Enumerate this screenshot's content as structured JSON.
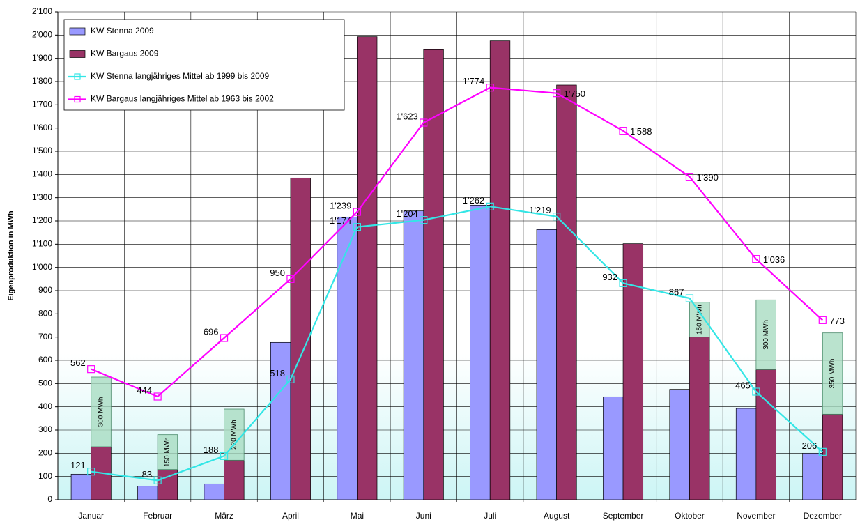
{
  "chart_data": {
    "type": "bar_line",
    "y_label": "Eigenproduktion in MWh",
    "categories": [
      "Januar",
      "Februar",
      "März",
      "April",
      "Mai",
      "Juni",
      "Juli",
      "August",
      "September",
      "Oktober",
      "November",
      "Dezember"
    ],
    "ylim": [
      0,
      2100
    ],
    "yticks": [
      0,
      100,
      200,
      300,
      400,
      500,
      600,
      700,
      800,
      900,
      {
        "value": 1000,
        "label": "1'000"
      },
      {
        "value": 1100,
        "label": "1'100"
      },
      {
        "value": 1200,
        "label": "1'200"
      },
      {
        "value": 1300,
        "label": "1'300"
      },
      {
        "value": 1400,
        "label": "1'400"
      },
      {
        "value": 1500,
        "label": "1'500"
      },
      {
        "value": 1600,
        "label": "1'600"
      },
      {
        "value": 1700,
        "label": "1'700"
      },
      {
        "value": 1800,
        "label": "1'800"
      },
      {
        "value": 1900,
        "label": "1'900"
      },
      {
        "value": 2000,
        "label": "2'000"
      },
      {
        "value": 2100,
        "label": "2'100"
      }
    ],
    "grid": true,
    "legend": "top-left",
    "series": [
      {
        "name": "KW Stenna 2009",
        "kind": "bar",
        "color": "#9999ff",
        "values": [
          110,
          58,
          68,
          677,
          1217,
          1243,
          1268,
          1163,
          443,
          475,
          393,
          200
        ]
      },
      {
        "name": "KW Bargaus 2009",
        "kind": "bar",
        "color": "#993366",
        "values": [
          228,
          130,
          170,
          1385,
          1993,
          1937,
          1975,
          1785,
          1102,
          700,
          560,
          368
        ]
      },
      {
        "name": "KW Stenna langjähriges Mittel ab 1999 bis 2009",
        "kind": "line",
        "color": "#33e6e6",
        "values": [
          121,
          83,
          188,
          518,
          1174,
          1204,
          1262,
          1219,
          932,
          867,
          465,
          206
        ],
        "value_labels": [
          "121",
          "83",
          "188",
          "518",
          "1'174",
          "1'204",
          "1'262",
          "1'219",
          "932",
          "867",
          "465",
          "206"
        ]
      },
      {
        "name": "KW Bargaus langjähriges Mittel ab 1963 bis 2002",
        "kind": "line",
        "color": "#ff00ff",
        "values": [
          562,
          444,
          696,
          950,
          1239,
          1623,
          1774,
          1750,
          1588,
          1390,
          1036,
          773
        ],
        "value_labels": [
          "562",
          "444",
          "696",
          "950",
          "1'239",
          "1'623",
          "1'774",
          "1'750",
          "1'588",
          "1'390",
          "1'036",
          "773"
        ]
      }
    ],
    "stacked_boxes": {
      "color": "#a9dcc2",
      "values": [
        300,
        150,
        220,
        null,
        null,
        null,
        null,
        null,
        null,
        150,
        300,
        350
      ],
      "value_labels": [
        "300 MWh",
        "150 MWh",
        "220 MWh",
        null,
        null,
        null,
        null,
        null,
        null,
        "150 MWh",
        "300 MWh",
        "350 MWh"
      ]
    }
  }
}
